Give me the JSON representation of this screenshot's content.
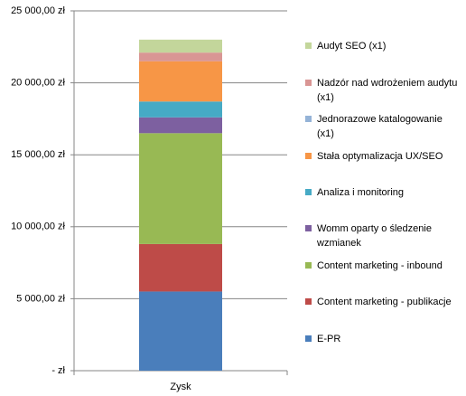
{
  "chart_data": {
    "type": "stacked_bar",
    "categories": [
      "Zysk"
    ],
    "series": [
      {
        "name": "E-PR",
        "color": "#4a7ebb",
        "values": [
          5500
        ]
      },
      {
        "name": "Content marketing - publikacje",
        "color": "#be4b48",
        "values": [
          3300
        ]
      },
      {
        "name": "Content marketing - inbound",
        "color": "#98b954",
        "values": [
          7700
        ]
      },
      {
        "name": "Womm oparty o śledzenie wzmianek",
        "color": "#7d60a0",
        "values": [
          1100
        ]
      },
      {
        "name": "Analiza i monitoring",
        "color": "#46aac5",
        "values": [
          1100
        ]
      },
      {
        "name": "Stała optymalizacja UX/SEO",
        "color": "#f79646",
        "values": [
          2800
        ]
      },
      {
        "name": "Jednorazowe katalogowanie (x1)",
        "color": "#95b3d7",
        "values": [
          0
        ]
      },
      {
        "name": "Nadzór nad wdrożeniem audytu (x1)",
        "color": "#d99694",
        "values": [
          600
        ]
      },
      {
        "name": "Audyt SEO (x1)",
        "color": "#c3d69b",
        "values": [
          900
        ]
      }
    ],
    "ylim": [
      0,
      25000
    ],
    "yticks": [
      {
        "value": 0,
        "label": "-  zł"
      },
      {
        "value": 5000,
        "label": "5 000,00 zł"
      },
      {
        "value": 10000,
        "label": "10 000,00 zł"
      },
      {
        "value": 15000,
        "label": "15 000,00 zł"
      },
      {
        "value": 20000,
        "label": "20 000,00 zł"
      },
      {
        "value": 25000,
        "label": "25 000,00 zł"
      }
    ],
    "grid": true,
    "legend": "right"
  }
}
